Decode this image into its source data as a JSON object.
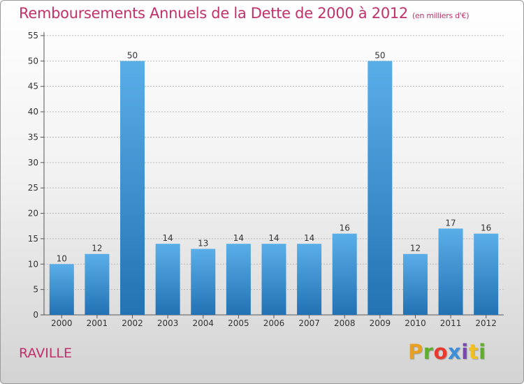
{
  "header": {
    "title": "Remboursements Annuels de la Dette de 2000 à 2012",
    "unit": "(en milliers d'€)"
  },
  "footer": {
    "commune": "RAVILLE",
    "logo_text": "Proxiti",
    "logo_colors": [
      "#e8a020",
      "#5fae2f",
      "#e63b2e",
      "#3a8fd8",
      "#7a45b5",
      "#f0c020",
      "#5fae2f"
    ]
  },
  "colors": {
    "title": "#c0306a",
    "bar_top": "#5aaee8",
    "bar_bottom": "#2272b4",
    "grid": "#b8b8b8",
    "axis": "#555555"
  },
  "chart_data": {
    "type": "bar",
    "title": "Remboursements Annuels de la Dette de 2000 à 2012",
    "subtitle": "(en milliers d'€)",
    "categories": [
      "2000",
      "2001",
      "2002",
      "2003",
      "2004",
      "2005",
      "2006",
      "2007",
      "2008",
      "2009",
      "2010",
      "2011",
      "2012"
    ],
    "values": [
      10,
      12,
      50,
      14,
      13,
      14,
      14,
      14,
      16,
      50,
      12,
      17,
      16
    ],
    "data_labels": [
      "10",
      "12",
      "50",
      "14",
      "13",
      "14",
      "14",
      "14",
      "16",
      "50",
      "12",
      "17",
      "16"
    ],
    "ylim": [
      0,
      55
    ],
    "yticks": [
      0,
      5,
      10,
      15,
      20,
      25,
      30,
      35,
      40,
      45,
      50,
      55
    ],
    "grid": true,
    "xlabel": "",
    "ylabel": ""
  }
}
